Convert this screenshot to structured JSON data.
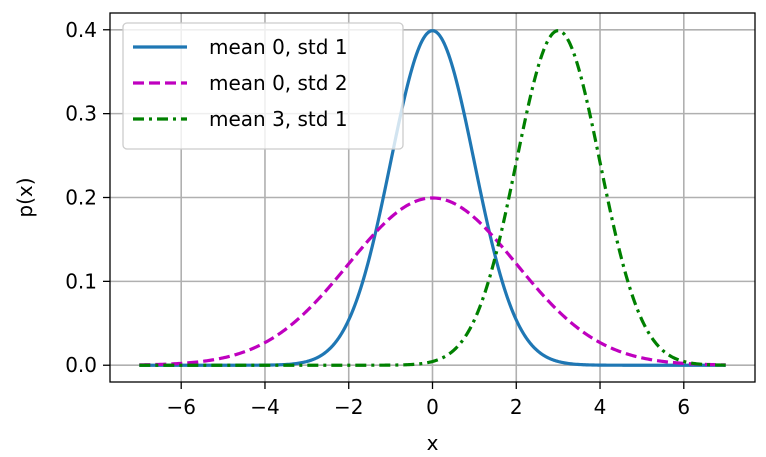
{
  "chart_data": {
    "type": "line",
    "title": "",
    "xlabel": "x",
    "ylabel": "p(x)",
    "xlim": [
      -7.7,
      7.7
    ],
    "ylim": [
      -0.02,
      0.42
    ],
    "xticks": [
      -6,
      -4,
      -2,
      0,
      2,
      4,
      6
    ],
    "xtick_labels": [
      "−6",
      "−4",
      "−2",
      "0",
      "2",
      "4",
      "6"
    ],
    "yticks": [
      0.0,
      0.1,
      0.2,
      0.3,
      0.4
    ],
    "ytick_labels": [
      "0.0",
      "0.1",
      "0.2",
      "0.3",
      "0.4"
    ],
    "grid": true,
    "legend_position": "top-left",
    "x_range": [
      -7,
      7
    ],
    "series": [
      {
        "name": "mean 0, std 1",
        "mean": 0,
        "std": 1,
        "color": "#1f77b4",
        "linestyle": "solid"
      },
      {
        "name": "mean 0, std 2",
        "mean": 0,
        "std": 2,
        "color": "#bf00bf",
        "linestyle": "dashed"
      },
      {
        "name": "mean 3, std 1",
        "mean": 3,
        "std": 1,
        "color": "#008000",
        "linestyle": "dashdot"
      }
    ]
  }
}
